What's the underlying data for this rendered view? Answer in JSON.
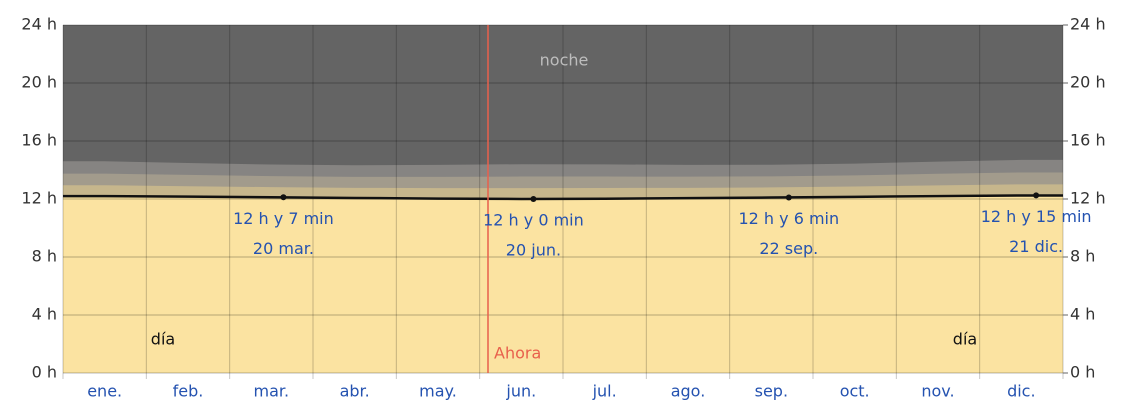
{
  "chart_data": {
    "type": "daylight",
    "categories": [
      "ene.",
      "feb.",
      "mar.",
      "abr.",
      "may.",
      "jun.",
      "jul.",
      "ago.",
      "sep.",
      "oct.",
      "nov.",
      "dic."
    ],
    "daylight": {
      "color": "#fbe3a1",
      "line_color": "#111111",
      "values": [
        12.2,
        12.16,
        12.12,
        12.07,
        12.03,
        12.0,
        12.02,
        12.06,
        12.1,
        12.15,
        12.2,
        12.24
      ]
    },
    "twilight": [
      {
        "color": "#c6b68c",
        "values": [
          0.75,
          0.72,
          0.7,
          0.7,
          0.72,
          0.75,
          0.74,
          0.71,
          0.7,
          0.71,
          0.74,
          0.77
        ]
      },
      {
        "color": "#a29b8c",
        "values": [
          0.8,
          0.78,
          0.76,
          0.76,
          0.78,
          0.8,
          0.79,
          0.77,
          0.76,
          0.77,
          0.8,
          0.82
        ]
      },
      {
        "color": "#868482",
        "values": [
          0.85,
          0.82,
          0.8,
          0.8,
          0.82,
          0.85,
          0.84,
          0.81,
          0.8,
          0.81,
          0.84,
          0.87
        ]
      }
    ],
    "night_color": "#646464",
    "ylim": [
      0,
      24
    ],
    "yticks": [
      {
        "value": 0,
        "label": "0 h"
      },
      {
        "value": 4,
        "label": "4 h"
      },
      {
        "value": 8,
        "label": "8 h"
      },
      {
        "value": 12,
        "label": "12 h"
      },
      {
        "value": 16,
        "label": "16 h"
      },
      {
        "value": 20,
        "label": "20 h"
      },
      {
        "value": 24,
        "label": "24 h"
      }
    ],
    "y2lim": [
      24,
      0
    ],
    "y2ticks": [
      {
        "value": 0,
        "label": "0 h"
      },
      {
        "value": 4,
        "label": "4 h"
      },
      {
        "value": 8,
        "label": "8 h"
      },
      {
        "value": 12,
        "label": "12 h"
      },
      {
        "value": 16,
        "label": "16 h"
      },
      {
        "value": 20,
        "label": "20 h"
      },
      {
        "value": 24,
        "label": "24 h"
      }
    ],
    "grid": true,
    "annotations": [
      {
        "date": "20 mar.",
        "value": 12.117,
        "value_label": "12 h y 7 min"
      },
      {
        "date": "20 jun.",
        "value": 12.0,
        "value_label": "12 h y 0 min"
      },
      {
        "date": "22 sep.",
        "value": 12.1,
        "value_label": "12 h y 6 min"
      },
      {
        "date": "21 dic.",
        "value": 12.25,
        "value_label": "12 h y 15 min"
      }
    ],
    "night_label": "noche",
    "day_label": "día",
    "now": {
      "label": "Ahora",
      "x": 5.1,
      "color": "#e8604c"
    }
  }
}
